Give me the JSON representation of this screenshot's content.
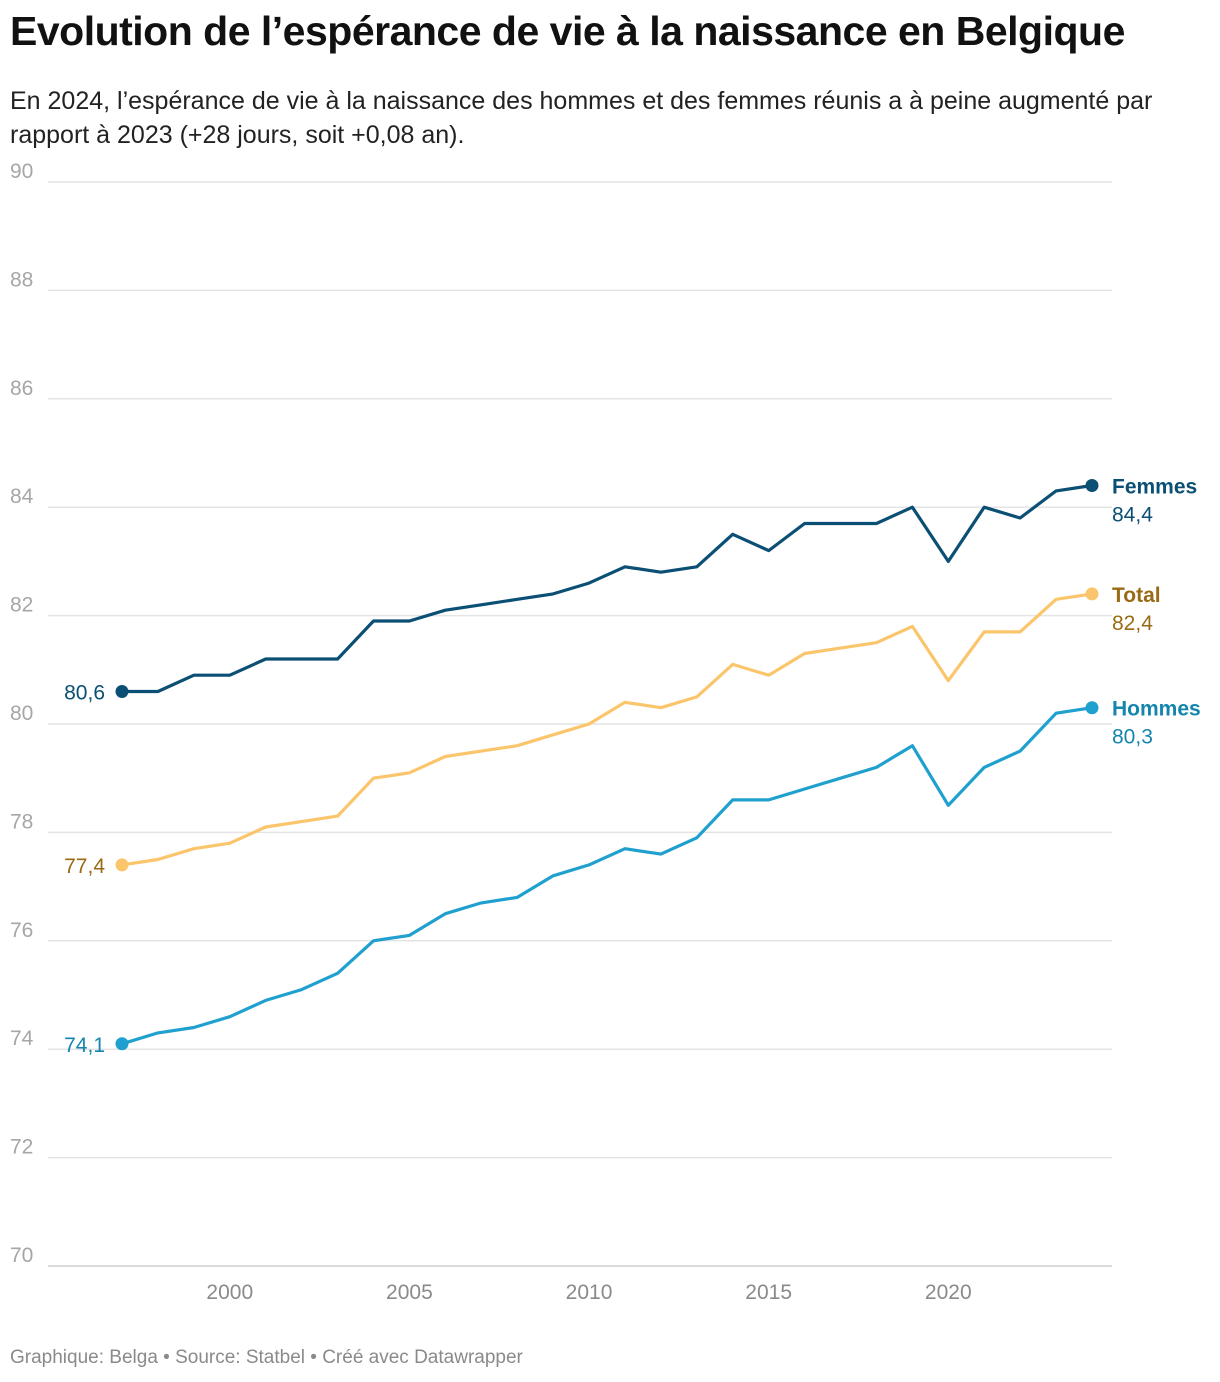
{
  "title": "Evolution de l’espérance de vie à la naissance en Belgique",
  "subtitle": "En 2024, l’espérance de vie à la naissance des hommes et des femmes réunis a à peine augmenté par rapport à 2023 (+28 jours, soit +0,08 an).",
  "footer": "Graphique: Belga • Source: Statbel • Créé avec Datawrapper",
  "chart_data": {
    "type": "line",
    "x": [
      1997,
      1998,
      1999,
      2000,
      2001,
      2002,
      2003,
      2004,
      2005,
      2006,
      2007,
      2008,
      2009,
      2010,
      2011,
      2012,
      2013,
      2014,
      2015,
      2016,
      2017,
      2018,
      2019,
      2020,
      2021,
      2022,
      2023,
      2024
    ],
    "xticks": [
      2000,
      2005,
      2010,
      2015,
      2020
    ],
    "yticks": [
      70,
      72,
      74,
      76,
      78,
      80,
      82,
      84,
      86,
      88,
      90
    ],
    "ylim": [
      70,
      90
    ],
    "grid": true,
    "series": [
      {
        "name": "Femmes",
        "color": "#0b4f75",
        "label_color": "#0b4f75",
        "start_label": "80,6",
        "end_label": "84,4",
        "values": [
          80.6,
          80.6,
          80.9,
          80.9,
          81.2,
          81.2,
          81.2,
          81.9,
          81.9,
          82.1,
          82.2,
          82.3,
          82.4,
          82.6,
          82.9,
          82.8,
          82.9,
          83.5,
          83.2,
          83.7,
          83.7,
          83.7,
          84.0,
          83.0,
          84.0,
          83.8,
          84.3,
          84.4
        ]
      },
      {
        "name": "Total",
        "color": "#fbc56b",
        "label_color": "#9a6a14",
        "start_label": "77,4",
        "end_label": "82,4",
        "values": [
          77.4,
          77.5,
          77.7,
          77.8,
          78.1,
          78.2,
          78.3,
          79.0,
          79.1,
          79.4,
          79.5,
          79.6,
          79.8,
          80.0,
          80.4,
          80.3,
          80.5,
          81.1,
          80.9,
          81.3,
          81.4,
          81.5,
          81.8,
          80.8,
          81.7,
          81.7,
          82.3,
          82.4
        ]
      },
      {
        "name": "Hommes",
        "color": "#1fa0cf",
        "label_color": "#1485ad",
        "start_label": "74,1",
        "end_label": "80,3",
        "values": [
          74.1,
          74.3,
          74.4,
          74.6,
          74.9,
          75.1,
          75.4,
          76.0,
          76.1,
          76.5,
          76.7,
          76.8,
          77.2,
          77.4,
          77.7,
          77.6,
          77.9,
          78.6,
          78.6,
          78.8,
          79.0,
          79.2,
          79.6,
          78.5,
          79.2,
          79.5,
          80.2,
          80.3
        ]
      }
    ]
  }
}
